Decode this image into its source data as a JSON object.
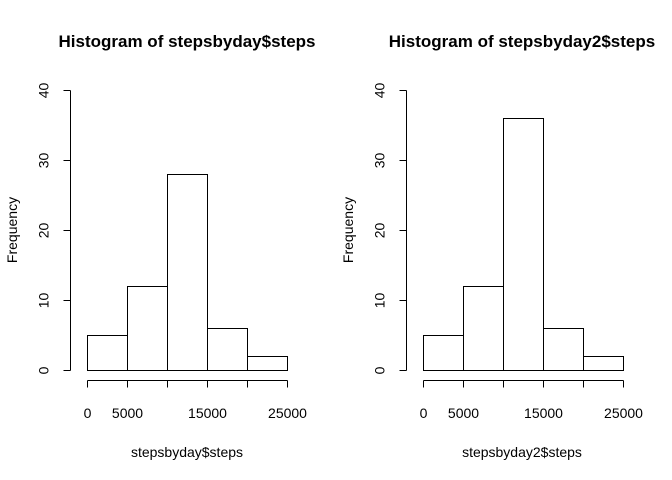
{
  "chart_data": [
    {
      "type": "bar",
      "title": "Histogram of stepsbyday$steps",
      "xlabel": "stepsbyday$steps",
      "ylabel": "Frequency",
      "bins": [
        [
          0,
          5000
        ],
        [
          5000,
          10000
        ],
        [
          10000,
          15000
        ],
        [
          15000,
          20000
        ],
        [
          20000,
          25000
        ]
      ],
      "values": [
        5,
        12,
        28,
        6,
        2
      ],
      "xlim": [
        0,
        25000
      ],
      "ylim": [
        0,
        40
      ],
      "xticks": [
        0,
        5000,
        10000,
        15000,
        20000,
        25000
      ],
      "xtick_labels": [
        "0",
        "5000",
        "",
        "15000",
        "",
        "25000"
      ],
      "yticks": [
        0,
        10,
        20,
        30,
        40
      ],
      "ytick_labels": [
        "0",
        "10",
        "20",
        "30",
        "40"
      ]
    },
    {
      "type": "bar",
      "title": "Histogram of stepsbyday2$steps",
      "xlabel": "stepsbyday2$steps",
      "ylabel": "Frequency",
      "bins": [
        [
          0,
          5000
        ],
        [
          5000,
          10000
        ],
        [
          10000,
          15000
        ],
        [
          15000,
          20000
        ],
        [
          20000,
          25000
        ]
      ],
      "values": [
        5,
        12,
        36,
        6,
        2
      ],
      "xlim": [
        0,
        25000
      ],
      "ylim": [
        0,
        40
      ],
      "xticks": [
        0,
        5000,
        10000,
        15000,
        20000,
        25000
      ],
      "xtick_labels": [
        "0",
        "5000",
        "",
        "15000",
        "",
        "25000"
      ],
      "yticks": [
        0,
        10,
        20,
        30,
        40
      ],
      "ytick_labels": [
        "0",
        "10",
        "20",
        "30",
        "40"
      ]
    }
  ]
}
